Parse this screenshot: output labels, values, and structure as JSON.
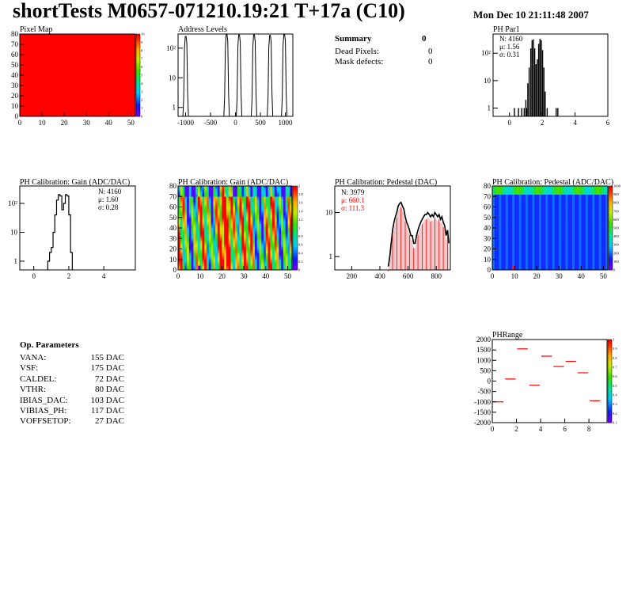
{
  "header": {
    "title": "shortTests M0657-071210.19:21 T+17a (C10)",
    "datetime": "Mon Dec 10 21:11:48 2007"
  },
  "colors": {
    "histogram_line": "#000000",
    "red_fill": "#ff0000",
    "stat_red": "#ff0000"
  },
  "summary": {
    "label": "Summary",
    "value": "0",
    "rows": [
      {
        "label": "Dead Pixels:",
        "value": "0"
      },
      {
        "label": "Mask defects:",
        "value": "0"
      }
    ]
  },
  "op_params": {
    "title": "Op. Parameters",
    "rows": [
      {
        "label": "VANA:",
        "value": "155 DAC"
      },
      {
        "label": "VSF:",
        "value": "175 DAC"
      },
      {
        "label": "CALDEL:",
        "value": "72 DAC"
      },
      {
        "label": "VTHR:",
        "value": "80 DAC"
      },
      {
        "label": "IBIAS_DAC:",
        "value": "103 DAC"
      },
      {
        "label": "VIBIAS_PH:",
        "value": "117 DAC"
      },
      {
        "label": "VOFFSETOP:",
        "value": "27 DAC"
      }
    ]
  },
  "chart_data": [
    {
      "id": "pixel-map",
      "type": "heatmap",
      "title": "Pixel Map",
      "xlim": [
        0,
        52
      ],
      "ylim": [
        0,
        80
      ],
      "xticks": [
        "0",
        "10",
        "20",
        "30",
        "40",
        "50"
      ],
      "yticks": [
        "0",
        "10",
        "20",
        "30",
        "40",
        "50",
        "60",
        "70",
        "80"
      ],
      "uniform_value": 10,
      "zlim": [
        0,
        10
      ],
      "zticks": [
        "0",
        "1",
        "2",
        "3",
        "4",
        "5",
        "6",
        "7",
        "8",
        "9",
        "10"
      ]
    },
    {
      "id": "address-levels",
      "type": "bar",
      "title": "Address Levels",
      "scale": "log",
      "xlim": [
        -1150,
        1150
      ],
      "ylim": [
        0.5,
        300
      ],
      "xticks": [
        "-1000",
        "-500",
        "0",
        "500",
        "1000"
      ],
      "yticks": [
        {
          "v": 1,
          "t": "1"
        },
        {
          "v": 10,
          "t": "10"
        },
        {
          "v": 100,
          "t": "10²"
        }
      ],
      "peaks": [
        {
          "x": -990,
          "h": 250
        },
        {
          "x": -170,
          "h": 290
        },
        {
          "x": 80,
          "h": 280
        },
        {
          "x": 380,
          "h": 280
        },
        {
          "x": 700,
          "h": 270
        },
        {
          "x": 985,
          "h": 290
        }
      ]
    },
    {
      "id": "ph-par1",
      "type": "bar",
      "title": "PH Par1",
      "scale": "log",
      "xlim": [
        -1,
        6
      ],
      "ylim": [
        0.5,
        500
      ],
      "xticks": [
        "0",
        "2",
        "4",
        "6"
      ],
      "yticks": [
        {
          "v": 1,
          "t": "1"
        },
        {
          "v": 10,
          "t": "10"
        },
        {
          "v": 100,
          "t": "10²"
        }
      ],
      "stats": {
        "n": "N: 4160",
        "mu": "μ: 1.56",
        "sigma": "σ: 0.31"
      },
      "bins": [
        {
          "x": 0.3,
          "y": 1
        },
        {
          "x": 0.55,
          "y": 1
        },
        {
          "x": 0.75,
          "y": 1
        },
        {
          "x": 0.9,
          "y": 1
        },
        {
          "x": 1.0,
          "y": 2
        },
        {
          "x": 1.05,
          "y": 1
        },
        {
          "x": 1.12,
          "y": 8
        },
        {
          "x": 1.2,
          "y": 30
        },
        {
          "x": 1.3,
          "y": 150
        },
        {
          "x": 1.38,
          "y": 300
        },
        {
          "x": 1.46,
          "y": 320
        },
        {
          "x": 1.54,
          "y": 150
        },
        {
          "x": 1.62,
          "y": 40
        },
        {
          "x": 1.7,
          "y": 60
        },
        {
          "x": 1.78,
          "y": 220
        },
        {
          "x": 1.86,
          "y": 330
        },
        {
          "x": 1.94,
          "y": 300
        },
        {
          "x": 2.02,
          "y": 130
        },
        {
          "x": 2.1,
          "y": 30
        },
        {
          "x": 2.18,
          "y": 4
        },
        {
          "x": 2.3,
          "y": 1
        },
        {
          "x": 2.85,
          "y": 1
        },
        {
          "x": 2.95,
          "y": 1
        }
      ]
    },
    {
      "id": "ph-gain",
      "type": "bar",
      "title": "PH Calibration: Gain (ADC/DAC)",
      "scale": "log",
      "xlim": [
        -0.8,
        5.8
      ],
      "ylim": [
        0.5,
        400
      ],
      "xticks": [
        "0",
        "2",
        "4"
      ],
      "yticks": [
        {
          "v": 1,
          "t": "1"
        },
        {
          "v": 10,
          "t": "10"
        },
        {
          "v": 100,
          "t": "10²"
        }
      ],
      "stats": {
        "n": "N: 4160",
        "mu": "μ: 1.60",
        "sigma": "σ: 0.28"
      },
      "bins": [
        {
          "x": 0.85,
          "y": 1
        },
        {
          "x": 0.95,
          "y": 2
        },
        {
          "x": 1.05,
          "y": 3
        },
        {
          "x": 1.15,
          "y": 10
        },
        {
          "x": 1.25,
          "y": 40
        },
        {
          "x": 1.35,
          "y": 130
        },
        {
          "x": 1.45,
          "y": 200
        },
        {
          "x": 1.55,
          "y": 180
        },
        {
          "x": 1.65,
          "y": 60
        },
        {
          "x": 1.75,
          "y": 100
        },
        {
          "x": 1.85,
          "y": 200
        },
        {
          "x": 1.95,
          "y": 180
        },
        {
          "x": 2.05,
          "y": 40
        },
        {
          "x": 2.15,
          "y": 2
        }
      ]
    },
    {
      "id": "gain-map",
      "type": "heatmap",
      "title": "PH Calibration: Gain (ADC/DAC)",
      "xlim": [
        0,
        52
      ],
      "ylim": [
        0,
        80
      ],
      "xticks": [
        "0",
        "10",
        "20",
        "30",
        "40",
        "50"
      ],
      "yticks": [
        "0",
        "10",
        "20",
        "30",
        "40",
        "50",
        "60",
        "70",
        "80"
      ],
      "zlim": [
        0,
        2.2
      ],
      "zticks": [
        "0",
        "0.2",
        "0.4",
        "0.6",
        "0.8",
        "1",
        "1.2",
        "1.4",
        "1.6",
        "1.8",
        "2"
      ]
    },
    {
      "id": "ph-pedestal",
      "type": "bar",
      "title": "PH Calibration: Pedestal (DAC)",
      "scale": "log",
      "xlim": [
        80,
        900
      ],
      "ylim": [
        0.5,
        40
      ],
      "xticks": [
        "200",
        "400",
        "600",
        "800"
      ],
      "yticks": [
        {
          "v": 1,
          "t": "1"
        },
        {
          "v": 10,
          "t": "10"
        }
      ],
      "stats": {
        "n": "N: 3979",
        "mu": "μ: 660.1",
        "sigma": "σ: 111.3"
      },
      "profile": [
        [
          460,
          0.6
        ],
        [
          470,
          1
        ],
        [
          480,
          2
        ],
        [
          490,
          4
        ],
        [
          500,
          6
        ],
        [
          510,
          8
        ],
        [
          520,
          10
        ],
        [
          530,
          14
        ],
        [
          540,
          16
        ],
        [
          550,
          17
        ],
        [
          560,
          14
        ],
        [
          570,
          12
        ],
        [
          580,
          8
        ],
        [
          590,
          6
        ],
        [
          600,
          5
        ],
        [
          610,
          4
        ],
        [
          620,
          3
        ],
        [
          630,
          3
        ],
        [
          640,
          2
        ],
        [
          650,
          2
        ],
        [
          660,
          3
        ],
        [
          670,
          4
        ],
        [
          680,
          5
        ],
        [
          690,
          6
        ],
        [
          700,
          7
        ],
        [
          710,
          8
        ],
        [
          720,
          9
        ],
        [
          730,
          9
        ],
        [
          740,
          10
        ],
        [
          750,
          9
        ],
        [
          760,
          8
        ],
        [
          770,
          9
        ],
        [
          780,
          8
        ],
        [
          790,
          10
        ],
        [
          800,
          9
        ],
        [
          810,
          8
        ],
        [
          820,
          9
        ],
        [
          830,
          7
        ],
        [
          840,
          8
        ],
        [
          850,
          6
        ],
        [
          860,
          5
        ],
        [
          870,
          3
        ],
        [
          880,
          4
        ],
        [
          890,
          2
        ]
      ]
    },
    {
      "id": "pedestal-map",
      "type": "heatmap",
      "title": "PH Calibration: Pedestal (ADC/DAC)",
      "xlim": [
        0,
        52
      ],
      "ylim": [
        0,
        80
      ],
      "xticks": [
        "0",
        "10",
        "20",
        "30",
        "40",
        "50"
      ],
      "yticks": [
        "0",
        "10",
        "20",
        "30",
        "40",
        "50",
        "60",
        "70",
        "80"
      ],
      "zlim": [
        0,
        1000
      ],
      "zticks": [
        "0",
        "100",
        "200",
        "300",
        "400",
        "500",
        "600",
        "700",
        "800",
        "900",
        "1000"
      ]
    },
    {
      "id": "ph-range",
      "type": "scatter",
      "title": "PHRange",
      "xlim": [
        0,
        9.5
      ],
      "ylim": [
        -2000,
        2000
      ],
      "xticks": [
        "0",
        "2",
        "4",
        "6",
        "8"
      ],
      "yticks": [
        "-2000",
        "-1500",
        "-1000",
        "-500",
        "0",
        "500",
        "1000",
        "1500",
        "2000"
      ],
      "zticks": [
        "0.1",
        "0.2",
        "0.3",
        "0.4",
        "0.5",
        "0.6",
        "0.7",
        "0.8",
        "0.9",
        "1"
      ],
      "x": [
        0.5,
        1.5,
        2.5,
        3.5,
        4.5,
        5.5,
        6.5,
        7.5,
        8.5
      ],
      "y": [
        -1000,
        100,
        1550,
        -200,
        1200,
        700,
        950,
        400,
        -950
      ]
    }
  ]
}
